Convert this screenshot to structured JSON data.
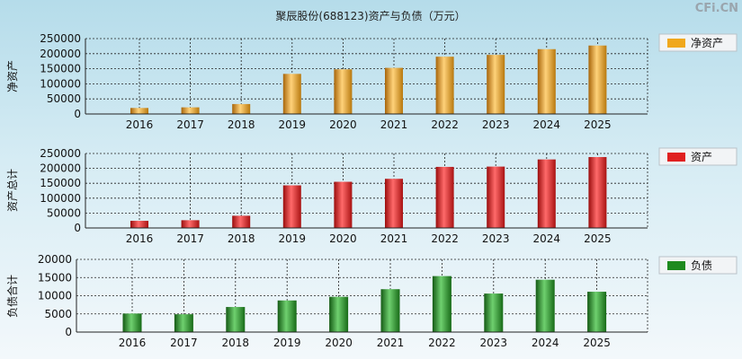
{
  "title": "聚辰股份(688123)资产与负债（万元）",
  "watermark": "CFi.CN",
  "chart_data": [
    {
      "type": "bar",
      "ylabel": "净资产",
      "legend": "净资产",
      "legend_position": "top-right",
      "color": "#f0a81c",
      "grid": true,
      "categories": [
        "2016",
        "2017",
        "2018",
        "2019",
        "2020",
        "2021",
        "2022",
        "2023",
        "2024",
        "2025"
      ],
      "values": [
        20000,
        22000,
        33000,
        133000,
        148000,
        153000,
        190000,
        196000,
        215000,
        227000
      ],
      "ylim": [
        0,
        250000
      ],
      "yticks": [
        0,
        50000,
        100000,
        150000,
        200000,
        250000
      ]
    },
    {
      "type": "bar",
      "ylabel": "资产总计",
      "legend": "资产",
      "legend_position": "top-right",
      "color": "#e02020",
      "grid": true,
      "categories": [
        "2016",
        "2017",
        "2018",
        "2019",
        "2020",
        "2021",
        "2022",
        "2023",
        "2024",
        "2025"
      ],
      "values": [
        24000,
        26000,
        41000,
        143000,
        155000,
        165000,
        205000,
        206000,
        230000,
        238000
      ],
      "ylim": [
        0,
        250000
      ],
      "yticks": [
        0,
        50000,
        100000,
        150000,
        200000,
        250000
      ]
    },
    {
      "type": "bar",
      "ylabel": "负债合计",
      "legend": "负债",
      "legend_position": "top-right",
      "color": "#1e8a1e",
      "grid": true,
      "categories": [
        "2016",
        "2017",
        "2018",
        "2019",
        "2020",
        "2021",
        "2022",
        "2023",
        "2024",
        "2025"
      ],
      "values": [
        5100,
        4900,
        6900,
        8700,
        9700,
        11800,
        15400,
        10600,
        14400,
        11100
      ],
      "ylim": [
        0,
        20000
      ],
      "yticks": [
        0,
        5000,
        10000,
        15000,
        20000
      ]
    }
  ]
}
